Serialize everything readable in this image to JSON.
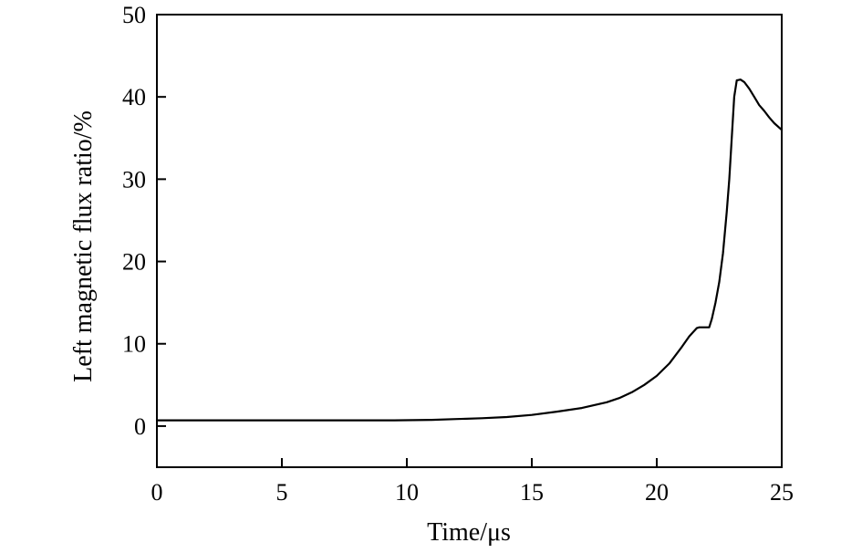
{
  "chart_data": {
    "type": "line",
    "title": "",
    "xlabel": "Time/μs",
    "ylabel": "Left magnetic flux ratio/%",
    "xlim": [
      0,
      25
    ],
    "ylim": [
      -5,
      50
    ],
    "xticks": [
      0,
      5,
      10,
      15,
      20,
      25
    ],
    "yticks": [
      0,
      10,
      20,
      30,
      40,
      50
    ],
    "xtick_labels": [
      "0",
      "5",
      "10",
      "15",
      "20",
      "25"
    ],
    "ytick_labels": [
      "0",
      "10",
      "20",
      "30",
      "40",
      "50"
    ],
    "grid": false,
    "legend": "none",
    "series": [
      {
        "color": "#000000",
        "x": [
          0,
          5,
          9.5,
          11,
          12,
          13,
          14,
          15,
          16,
          17,
          18,
          18.5,
          19,
          19.5,
          20,
          20.5,
          21,
          21.3,
          21.6,
          21.7,
          21.8,
          22.1,
          22.2,
          22.35,
          22.5,
          22.65,
          22.8,
          22.9,
          23.0,
          23.1,
          23.2,
          23.35,
          23.5,
          23.7,
          23.9,
          24.1,
          24.3,
          24.5,
          24.7,
          25
        ],
        "y": [
          0.7,
          0.7,
          0.7,
          0.75,
          0.85,
          0.95,
          1.1,
          1.35,
          1.75,
          2.2,
          2.9,
          3.4,
          4.1,
          5.0,
          6.1,
          7.6,
          9.6,
          10.9,
          11.9,
          12.0,
          12.0,
          12.0,
          13.0,
          15.0,
          17.5,
          21.0,
          26.0,
          30.0,
          35.0,
          40.0,
          42.0,
          42.1,
          41.8,
          41.0,
          40.0,
          39.0,
          38.3,
          37.5,
          36.8,
          36.0
        ]
      }
    ]
  }
}
